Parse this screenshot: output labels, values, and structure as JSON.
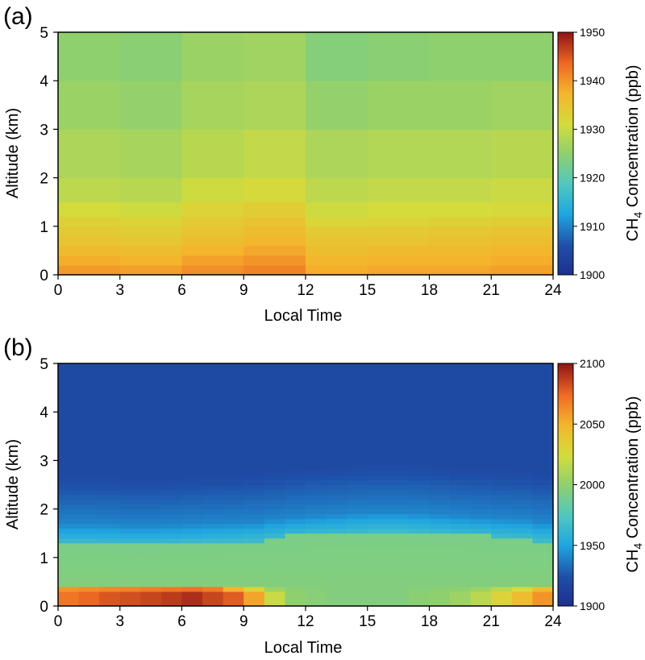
{
  "chart_data": [
    {
      "type": "heatmap",
      "panel_label": "(a)",
      "xlabel": "Local Time",
      "ylabel": "Altitude (km)",
      "xlim": [
        0,
        24
      ],
      "ylim": [
        0,
        5
      ],
      "xticks": [
        "0",
        "3",
        "6",
        "9",
        "12",
        "15",
        "18",
        "21",
        "24"
      ],
      "yticks": [
        "0",
        "1",
        "2",
        "3",
        "4",
        "5"
      ],
      "colorbar": {
        "label_main": "CH",
        "label_sub": "4",
        "label_rest": " Concentration (ppb)",
        "range": [
          1900,
          1950
        ],
        "ticks": [
          "1900",
          "1910",
          "1920",
          "1930",
          "1940",
          "1950"
        ],
        "colormap": "jet"
      },
      "time_breaks": [
        0,
        3,
        6,
        9,
        12,
        15,
        18,
        21,
        24
      ],
      "altitude_levels_km": [
        0.0,
        0.2,
        0.4,
        0.6,
        0.8,
        1.0,
        1.2,
        1.5,
        2.0,
        3.0,
        4.0,
        5.0
      ],
      "values_ppb": [
        [
          1939.5,
          1938.0,
          1936.5,
          1935.0,
          1934.0,
          1933.0,
          1931.0,
          1929.0,
          1927.5,
          1926.0,
          1925.0,
          1924.5
        ],
        [
          1939.0,
          1937.5,
          1936.0,
          1934.5,
          1933.5,
          1932.5,
          1930.5,
          1928.5,
          1927.0,
          1925.5,
          1924.5,
          1924.0
        ],
        [
          1940.5,
          1939.0,
          1937.5,
          1936.0,
          1935.0,
          1934.0,
          1932.5,
          1930.5,
          1928.5,
          1927.0,
          1926.0,
          1925.5
        ],
        [
          1941.5,
          1940.0,
          1938.5,
          1937.0,
          1936.0,
          1935.0,
          1933.5,
          1931.5,
          1929.5,
          1927.5,
          1926.5,
          1926.0
        ],
        [
          1938.0,
          1937.0,
          1936.0,
          1935.0,
          1934.0,
          1932.0,
          1930.5,
          1929.0,
          1927.5,
          1925.5,
          1924.0,
          1923.5
        ],
        [
          1938.5,
          1937.5,
          1936.5,
          1935.0,
          1934.0,
          1932.5,
          1931.0,
          1929.5,
          1928.0,
          1926.0,
          1924.5,
          1924.0
        ],
        [
          1938.5,
          1937.5,
          1936.5,
          1935.5,
          1934.5,
          1933.0,
          1931.0,
          1929.5,
          1928.0,
          1926.0,
          1925.0,
          1924.5
        ],
        [
          1939.0,
          1938.0,
          1937.0,
          1936.0,
          1935.0,
          1933.5,
          1931.5,
          1930.0,
          1928.5,
          1926.5,
          1925.0,
          1924.5
        ]
      ]
    },
    {
      "type": "heatmap",
      "panel_label": "(b)",
      "xlabel": "Local Time",
      "ylabel": "Altitude (km)",
      "xlim": [
        0,
        24
      ],
      "ylim": [
        0,
        5
      ],
      "xticks": [
        "0",
        "3",
        "6",
        "9",
        "12",
        "15",
        "18",
        "21",
        "24"
      ],
      "yticks": [
        "0",
        "1",
        "2",
        "3",
        "4",
        "5"
      ],
      "colorbar": {
        "label_main": "CH",
        "label_sub": "4",
        "label_rest": " Concentration (ppb)",
        "range": [
          1900,
          2100
        ],
        "ticks": [
          "1900",
          "1950",
          "2000",
          "2050",
          "2100"
        ],
        "colormap": "jet"
      },
      "time_step_hours": 1,
      "altitude_levels_km": [
        0.0,
        0.15,
        0.3,
        0.4,
        0.6,
        0.8,
        1.0,
        1.2,
        1.4
      ],
      "lowest_layer_ppb": [
        2070,
        2075,
        2080,
        2082,
        2085,
        2088,
        2092,
        2085,
        2078,
        2055,
        2020,
        2000,
        1997,
        1995,
        1995,
        1995,
        1995,
        1998,
        2000,
        2005,
        2015,
        2030,
        2045,
        2060
      ],
      "surface_layer_ppb": [
        2060,
        2062,
        2064,
        2066,
        2068,
        2070,
        2072,
        2068,
        2050,
        2030,
        2005,
        1998,
        1996,
        1995,
        1995,
        1995,
        1995,
        1996,
        1998,
        2000,
        2005,
        2015,
        2025,
        2045
      ],
      "mixed_layer_ppb": 1995,
      "mixed_layer_top_km": [
        1.45,
        1.45,
        1.44,
        1.42,
        1.42,
        1.43,
        1.45,
        1.47,
        1.48,
        1.5,
        1.55,
        1.6,
        1.63,
        1.65,
        1.68,
        1.7,
        1.7,
        1.68,
        1.65,
        1.62,
        1.6,
        1.57,
        1.55,
        1.5
      ],
      "free_troposphere_ppb": 1920
    }
  ]
}
